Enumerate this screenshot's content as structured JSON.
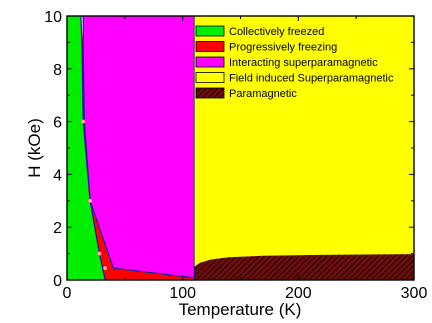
{
  "chart_data": {
    "type": "area",
    "title": "",
    "xlabel": "Temperature (K)",
    "ylabel": "H (kOe)",
    "xlim": [
      0,
      300
    ],
    "ylim": [
      0,
      10
    ],
    "xticks": [
      "0",
      "100",
      "200",
      "300"
    ],
    "yticks": [
      "0",
      "2",
      "4",
      "6",
      "8",
      "10"
    ],
    "grid": false,
    "legend_position": "top-right",
    "regions": [
      {
        "name": "Collectively freezed",
        "color": "#00ee00",
        "polygon": [
          [
            0,
            0
          ],
          [
            0,
            10
          ],
          [
            12,
            10
          ],
          [
            13,
            8.8
          ],
          [
            14,
            6
          ],
          [
            20,
            3
          ],
          [
            28,
            1
          ],
          [
            33,
            0
          ]
        ]
      },
      {
        "name": "Progressively freezing",
        "color": "#ff0000",
        "polygon": [
          [
            12,
            10
          ],
          [
            13,
            8.8
          ],
          [
            14,
            6
          ],
          [
            20,
            3
          ],
          [
            28,
            1
          ],
          [
            33,
            0
          ],
          [
            110,
            0
          ],
          [
            110,
            0.08
          ],
          [
            40,
            0.45
          ],
          [
            20,
            3
          ],
          [
            15,
            6
          ],
          [
            14,
            8.8
          ]
        ]
      },
      {
        "name": "Interacting superparamagnetic",
        "color": "#ff00ff",
        "polygon": [
          [
            14,
            10
          ],
          [
            14,
            8.8
          ],
          [
            15,
            6
          ],
          [
            20,
            3
          ],
          [
            40,
            0.45
          ],
          [
            110,
            0.08
          ],
          [
            110,
            10
          ]
        ]
      },
      {
        "name": "Field induced Superparamagnetic",
        "color": "#ffff00",
        "polygon": [
          [
            110,
            10
          ],
          [
            110,
            0.5
          ],
          [
            300,
            0.98
          ],
          [
            300,
            10
          ]
        ]
      },
      {
        "name": "Paramagnetic",
        "color": "#8b1a1a",
        "polygon": [
          [
            110,
            0
          ],
          [
            110,
            0.5
          ],
          [
            115,
            0.65
          ],
          [
            125,
            0.78
          ],
          [
            140,
            0.86
          ],
          [
            170,
            0.92
          ],
          [
            220,
            0.95
          ],
          [
            300,
            0.98
          ],
          [
            300,
            0
          ]
        ]
      }
    ],
    "points": [
      {
        "x": 14,
        "y": 6
      },
      {
        "x": 20,
        "y": 3
      },
      {
        "x": 28,
        "y": 1
      },
      {
        "x": 33,
        "y": 0.45
      }
    ]
  }
}
